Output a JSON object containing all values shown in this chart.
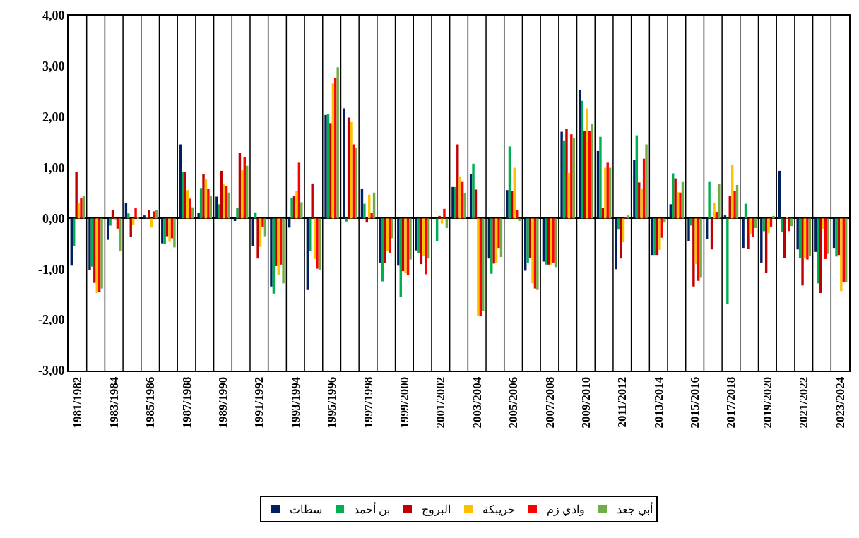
{
  "chart_data": {
    "type": "bar",
    "categories": [
      "1981/1982",
      null,
      "1983/1984",
      null,
      "1985/1986",
      null,
      "1987/1988",
      null,
      "1989/1990",
      null,
      "1991/1992",
      null,
      "1993/1994",
      null,
      "1995/1996",
      null,
      "1997/1998",
      null,
      "1999/2000",
      null,
      "2001/2002",
      null,
      "2003/2004",
      null,
      "2005/2006",
      null,
      "2007/2008",
      null,
      "2009/2010",
      null,
      "2011/2012",
      null,
      "2013/2014",
      null,
      "2015/2016",
      null,
      "2017/2018",
      null,
      "2019/2020",
      null,
      "2021/2022",
      null,
      "2023/2024"
    ],
    "series": [
      {
        "name": "سطات",
        "color": "#002060",
        "values": [
          -0.93,
          -1.01,
          -0.42,
          0.3,
          0.06,
          -0.49,
          1.46,
          0.11,
          0.43,
          -0.05,
          -0.54,
          -1.34,
          -0.18,
          -1.41,
          2.04,
          2.17,
          0.58,
          -0.87,
          -0.93,
          -0.63,
          0.0,
          0.62,
          0.88,
          -0.79,
          0.56,
          -1.03,
          -0.85,
          1.71,
          2.54,
          1.33,
          -1.0,
          1.16,
          -0.72,
          0.28,
          -0.44,
          -0.41,
          0.06,
          -0.58,
          -0.87,
          0.94,
          -0.61,
          -0.66,
          -0.58
        ]
      },
      {
        "name": "بن أحمد",
        "color": "#00b050",
        "values": [
          -0.55,
          -0.95,
          -0.14,
          0.1,
          0.03,
          -0.5,
          0.92,
          0.6,
          0.28,
          0.2,
          0.12,
          -1.48,
          0.4,
          -0.64,
          2.05,
          -0.06,
          0.29,
          -1.24,
          -1.55,
          -0.69,
          -0.44,
          0.62,
          1.08,
          -1.09,
          1.42,
          -0.87,
          -0.91,
          1.54,
          2.32,
          1.61,
          -0.22,
          1.64,
          -0.72,
          0.89,
          -0.14,
          0.72,
          -1.68,
          0.29,
          -0.25,
          -0.26,
          -0.78,
          -1.28,
          -0.75
        ]
      },
      {
        "name": "البروج",
        "color": "#c00000",
        "values": [
          0.92,
          -1.27,
          0.17,
          -0.36,
          0.17,
          -0.35,
          0.92,
          0.87,
          0.94,
          1.3,
          -0.79,
          -0.94,
          0.44,
          0.69,
          1.88,
          1.99,
          -0.08,
          -0.88,
          -1.04,
          -0.9,
          0.05,
          1.46,
          0.57,
          -0.89,
          0.54,
          -0.78,
          -0.91,
          1.76,
          1.73,
          0.21,
          -0.79,
          0.71,
          -0.72,
          0.79,
          -1.34,
          -0.61,
          0.45,
          -0.6,
          -1.07,
          -0.78,
          -1.32,
          -1.47,
          -0.72
        ]
      },
      {
        "name": "خريبكة",
        "color": "#ffc000",
        "values": [
          0.3,
          -1.47,
          -0.03,
          -0.13,
          -0.18,
          -0.46,
          0.56,
          0.78,
          0.67,
          0.95,
          -0.56,
          -1.11,
          0.54,
          -0.8,
          2.66,
          1.9,
          0.47,
          -0.64,
          -1.07,
          -0.74,
          -0.1,
          0.83,
          -1.93,
          -0.87,
          1.0,
          -1.28,
          -0.91,
          0.9,
          2.17,
          1.0,
          -0.47,
          0.58,
          -0.62,
          0.52,
          -0.9,
          0.31,
          1.06,
          -0.3,
          -0.29,
          0.03,
          -0.79,
          -0.21,
          -1.43
        ]
      },
      {
        "name": "وادي زم",
        "color": "#ff0000",
        "values": [
          0.4,
          -1.45,
          -0.2,
          0.2,
          0.14,
          -0.39,
          0.39,
          0.59,
          0.64,
          1.21,
          -0.16,
          -0.91,
          1.1,
          -0.99,
          2.77,
          1.46,
          0.11,
          -0.69,
          -1.12,
          -1.1,
          0.19,
          0.72,
          -1.92,
          -0.58,
          0.17,
          -1.38,
          -0.87,
          1.66,
          1.73,
          1.1,
          0.03,
          1.18,
          -0.38,
          0.51,
          -1.23,
          0.13,
          0.54,
          -0.37,
          -0.16,
          -0.25,
          -0.81,
          -0.8,
          -1.25
        ]
      },
      {
        "name": "أبي جعد",
        "color": "#70ad47",
        "values": [
          0.45,
          -1.38,
          -0.64,
          0.01,
          0.16,
          -0.57,
          0.22,
          0.45,
          0.51,
          1.04,
          -0.35,
          -1.28,
          0.32,
          -1.01,
          2.98,
          1.4,
          0.51,
          -0.39,
          -0.81,
          -0.79,
          -0.19,
          0.5,
          -1.83,
          -0.76,
          -0.05,
          -1.41,
          -0.96,
          1.58,
          1.87,
          1.0,
          0.06,
          1.46,
          -0.08,
          0.72,
          -1.17,
          0.68,
          0.66,
          -0.19,
          0.05,
          -0.15,
          -0.74,
          -0.7,
          -1.26
        ]
      }
    ],
    "ylim": [
      -3,
      4
    ],
    "yticks": [
      {
        "value": -3,
        "label": "-3,00"
      },
      {
        "value": -2,
        "label": "-2,00"
      },
      {
        "value": -1,
        "label": "-1,00"
      },
      {
        "value": 0,
        "label": "0,00"
      },
      {
        "value": 1,
        "label": "1,00"
      },
      {
        "value": 2,
        "label": "2,00"
      },
      {
        "value": 3,
        "label": "3,00"
      },
      {
        "value": 4,
        "label": "4,00"
      }
    ],
    "grid": "x",
    "legend": "bottom"
  }
}
